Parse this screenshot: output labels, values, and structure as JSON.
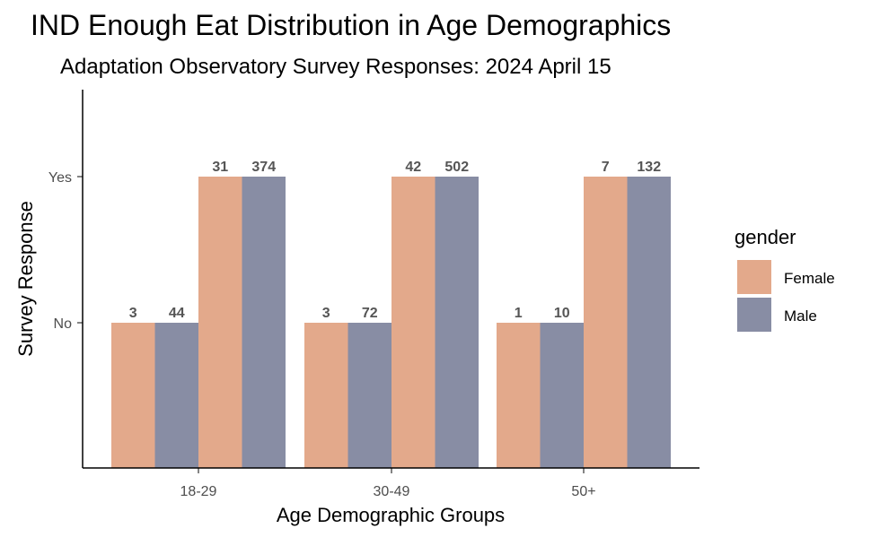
{
  "chart_data": {
    "type": "bar",
    "title": "IND Enough Eat Distribution in Age Demographics",
    "subtitle": "Adaptation Observatory Survey Responses: 2024 April 15",
    "xlabel": "Age Demographic Groups",
    "ylabel": "Survey Response",
    "categories": [
      "18-29",
      "30-49",
      "50+"
    ],
    "responses": [
      "No",
      "Yes"
    ],
    "series": [
      {
        "name": "Female",
        "color": "#E3A98B"
      },
      {
        "name": "Male",
        "color": "#888DA4"
      }
    ],
    "bars": [
      {
        "category": "18-29",
        "response": "No",
        "gender": "Female",
        "count": 3
      },
      {
        "category": "18-29",
        "response": "No",
        "gender": "Male",
        "count": 44
      },
      {
        "category": "18-29",
        "response": "Yes",
        "gender": "Female",
        "count": 31
      },
      {
        "category": "18-29",
        "response": "Yes",
        "gender": "Male",
        "count": 374
      },
      {
        "category": "30-49",
        "response": "No",
        "gender": "Female",
        "count": 3
      },
      {
        "category": "30-49",
        "response": "No",
        "gender": "Male",
        "count": 72
      },
      {
        "category": "30-49",
        "response": "Yes",
        "gender": "Female",
        "count": 42
      },
      {
        "category": "30-49",
        "response": "Yes",
        "gender": "Male",
        "count": 502
      },
      {
        "category": "50+",
        "response": "No",
        "gender": "Female",
        "count": 1
      },
      {
        "category": "50+",
        "response": "No",
        "gender": "Male",
        "count": 10
      },
      {
        "category": "50+",
        "response": "Yes",
        "gender": "Female",
        "count": 7
      },
      {
        "category": "50+",
        "response": "Yes",
        "gender": "Male",
        "count": 132
      }
    ],
    "legend": {
      "title": "gender",
      "position": "right"
    },
    "grid": false
  }
}
